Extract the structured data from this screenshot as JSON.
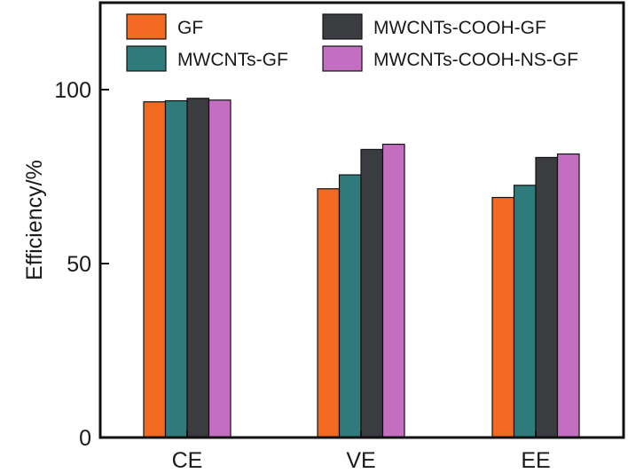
{
  "chart_data": {
    "type": "bar",
    "title": "",
    "xlabel": "",
    "ylabel": "Efficiency/%",
    "ylim": [
      0,
      125
    ],
    "yticks": [
      0,
      50,
      100
    ],
    "yticks_labels": [
      "0",
      "50",
      "100"
    ],
    "grid": false,
    "legend_position": "top",
    "categories": [
      "CE",
      "VE",
      "EE"
    ],
    "series": [
      {
        "name": "GF",
        "color": "#F26A21",
        "values": [
          96.5,
          71.5,
          69.0
        ]
      },
      {
        "name": "MWCNTs-GF",
        "color": "#2F7A7A",
        "values": [
          96.8,
          75.5,
          72.5
        ]
      },
      {
        "name": "MWCNTs-COOH-GF",
        "color": "#3A3C40",
        "values": [
          97.5,
          82.8,
          80.5
        ]
      },
      {
        "name": "MWCNTs-COOH-NS-GF",
        "color": "#C46EC2",
        "values": [
          97.0,
          84.3,
          81.5
        ]
      }
    ]
  }
}
